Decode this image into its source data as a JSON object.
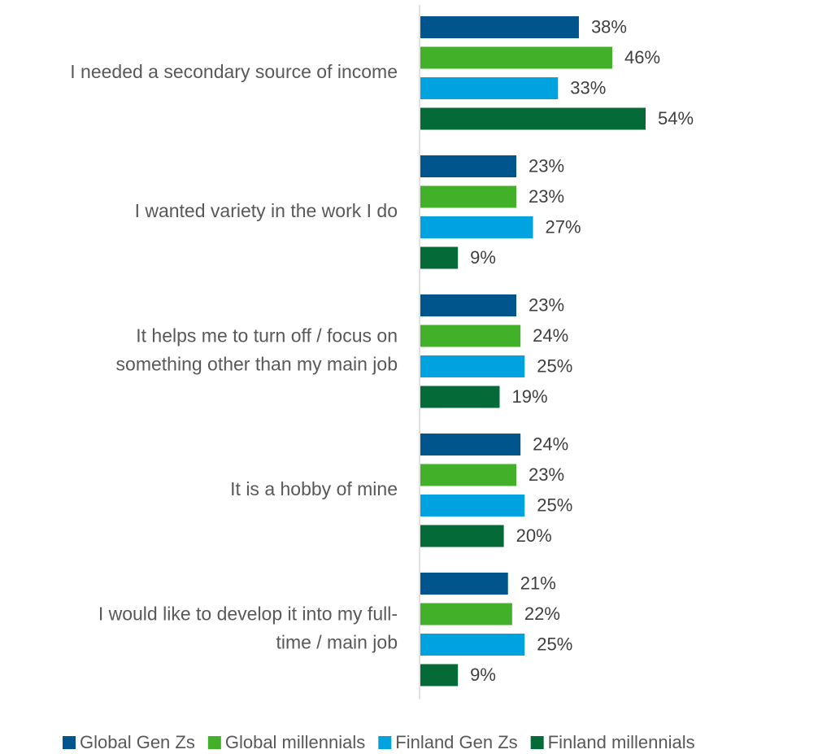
{
  "chart_data": {
    "type": "bar",
    "orientation": "horizontal",
    "title": "",
    "xlabel": "",
    "ylabel": "",
    "value_suffix": "%",
    "xlim": [
      0,
      60
    ],
    "grid": false,
    "legend_position": "bottom",
    "categories": [
      [
        "I needed a secondary source of income"
      ],
      [
        "I wanted variety in the work I do"
      ],
      [
        "It helps me to turn off / focus on",
        "something other than my main job"
      ],
      [
        "It is a hobby of mine"
      ],
      [
        "I would like to develop it into my full-",
        "time / main job"
      ]
    ],
    "series": [
      {
        "name": "Global Gen Zs",
        "color": "#00558C",
        "values": [
          38,
          23,
          23,
          24,
          21
        ]
      },
      {
        "name": "Global millennials",
        "color": "#43B02A",
        "values": [
          46,
          23,
          24,
          23,
          22
        ]
      },
      {
        "name": "Finland Gen Zs",
        "color": "#00A3E0",
        "values": [
          33,
          27,
          25,
          25,
          25
        ]
      },
      {
        "name": "Finland millennials",
        "color": "#046A38",
        "values": [
          54,
          9,
          19,
          20,
          9
        ]
      }
    ]
  }
}
